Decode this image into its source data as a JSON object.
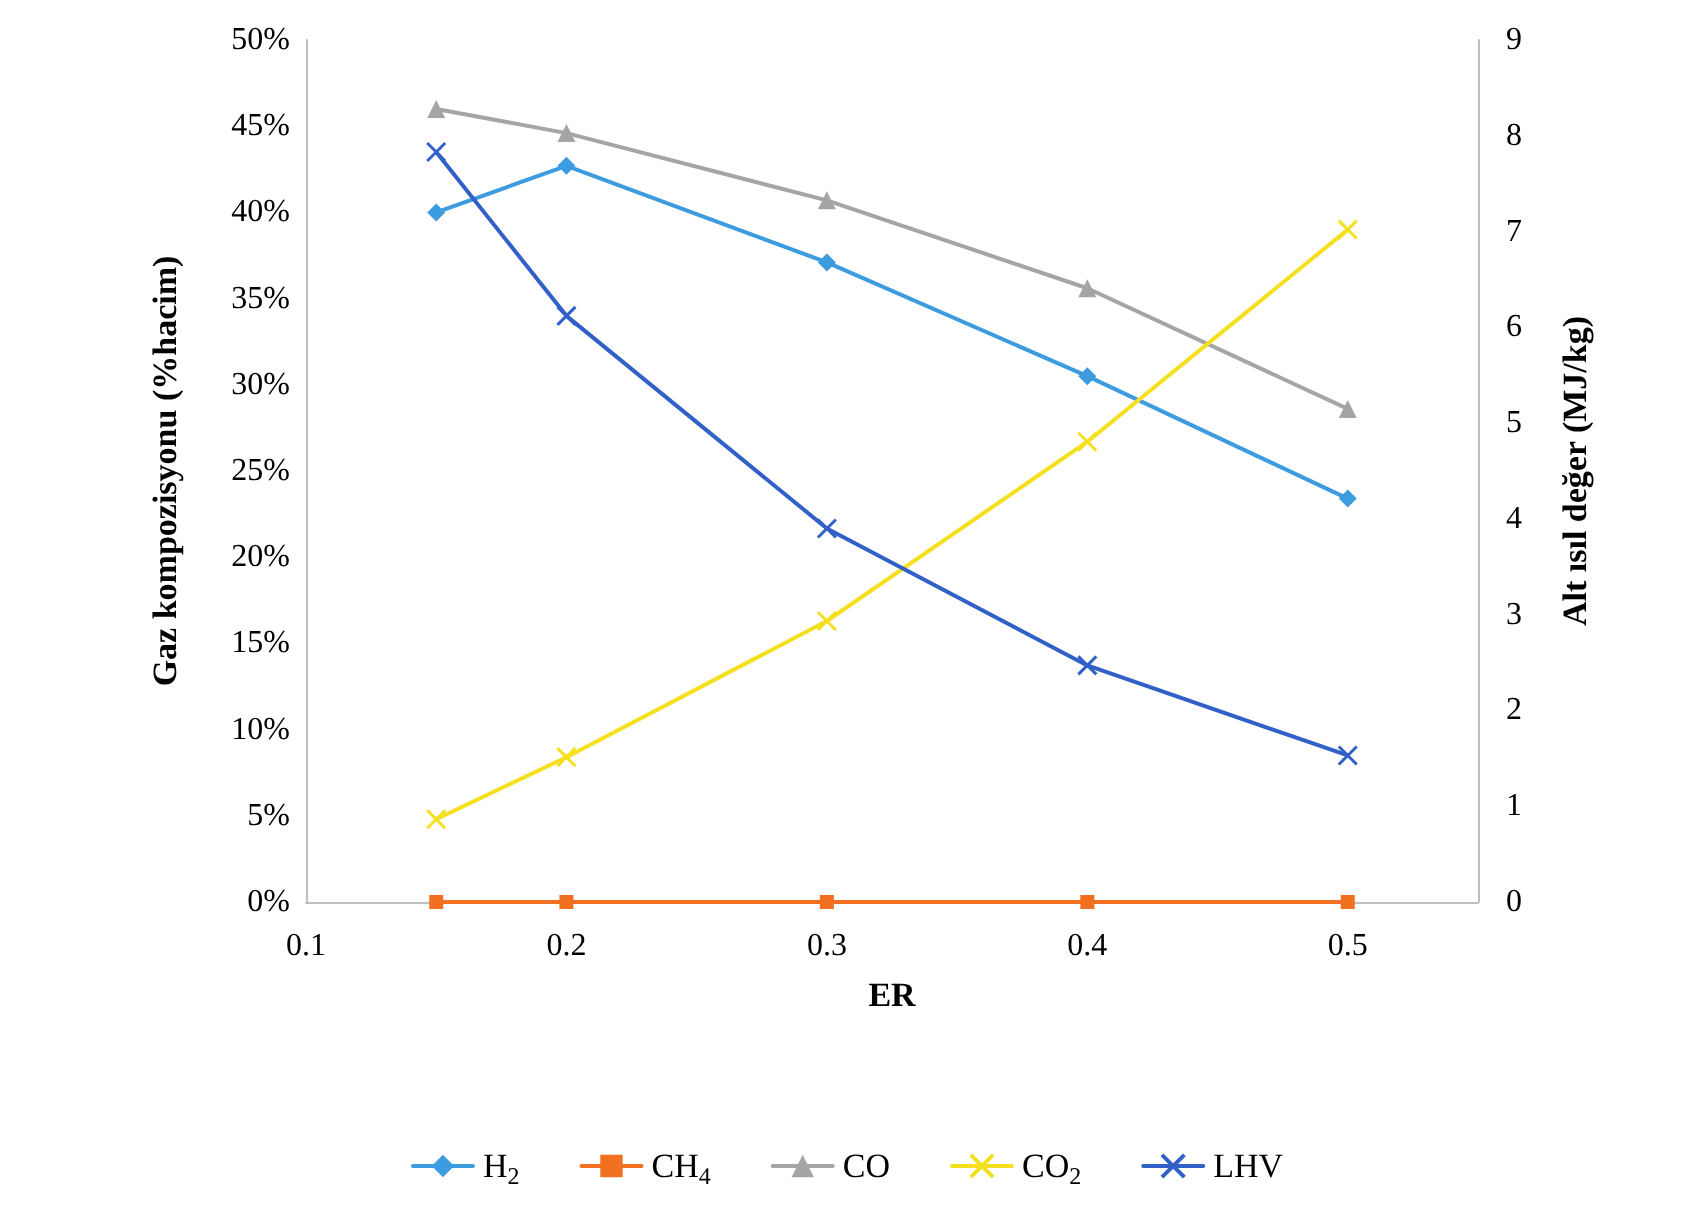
{
  "chart_data": {
    "type": "line",
    "xlabel": "ER",
    "ylabel": "Gaz kompozisyonu (%hacim)",
    "y2label": "Alt ısıl değer (MJ/kg)",
    "x": [
      0.15,
      0.2,
      0.3,
      0.4,
      0.5
    ],
    "xlim": [
      0.1,
      0.55
    ],
    "xticks": [
      0.1,
      0.2,
      0.3,
      0.4,
      0.5
    ],
    "ylim": [
      0,
      50
    ],
    "yticks": [
      {
        "value": 0,
        "label": "0%"
      },
      {
        "value": 5,
        "label": "5%"
      },
      {
        "value": 10,
        "label": "10%"
      },
      {
        "value": 15,
        "label": "15%"
      },
      {
        "value": 20,
        "label": "20%"
      },
      {
        "value": 25,
        "label": "25%"
      },
      {
        "value": 30,
        "label": "30%"
      },
      {
        "value": 35,
        "label": "35%"
      },
      {
        "value": 40,
        "label": "40%"
      },
      {
        "value": 45,
        "label": "45%"
      },
      {
        "value": 50,
        "label": "50%"
      }
    ],
    "y2lim": [
      0,
      9
    ],
    "y2ticks": [
      0,
      1,
      2,
      3,
      4,
      5,
      6,
      7,
      8,
      9
    ],
    "grid": false,
    "legend": "bottom",
    "line_style": "solid",
    "series": [
      {
        "name": "H$_{2}$",
        "color": "#3d9be0",
        "marker": "diamond",
        "values": [
          40.0,
          42.7,
          37.1,
          30.5,
          23.4
        ]
      },
      {
        "name": "CH$_{4}$",
        "color": "#f07020",
        "marker": "square",
        "values": [
          0,
          0,
          0,
          0,
          0
        ]
      },
      {
        "name": "CO",
        "color": "#a5a5a5",
        "marker": "triangle",
        "values": [
          46.0,
          44.6,
          40.7,
          35.6,
          28.6
        ]
      },
      {
        "name": "CO$_{2}$",
        "color": "#f5e020",
        "marker": "cross",
        "values": [
          4.8,
          8.4,
          16.3,
          26.7,
          39.0
        ]
      },
      {
        "name": "LHV",
        "color": "#3060c8",
        "marker": "cross",
        "axis": "y2",
        "values": [
          7.83,
          6.12,
          3.9,
          2.47,
          1.53
        ]
      }
    ]
  }
}
